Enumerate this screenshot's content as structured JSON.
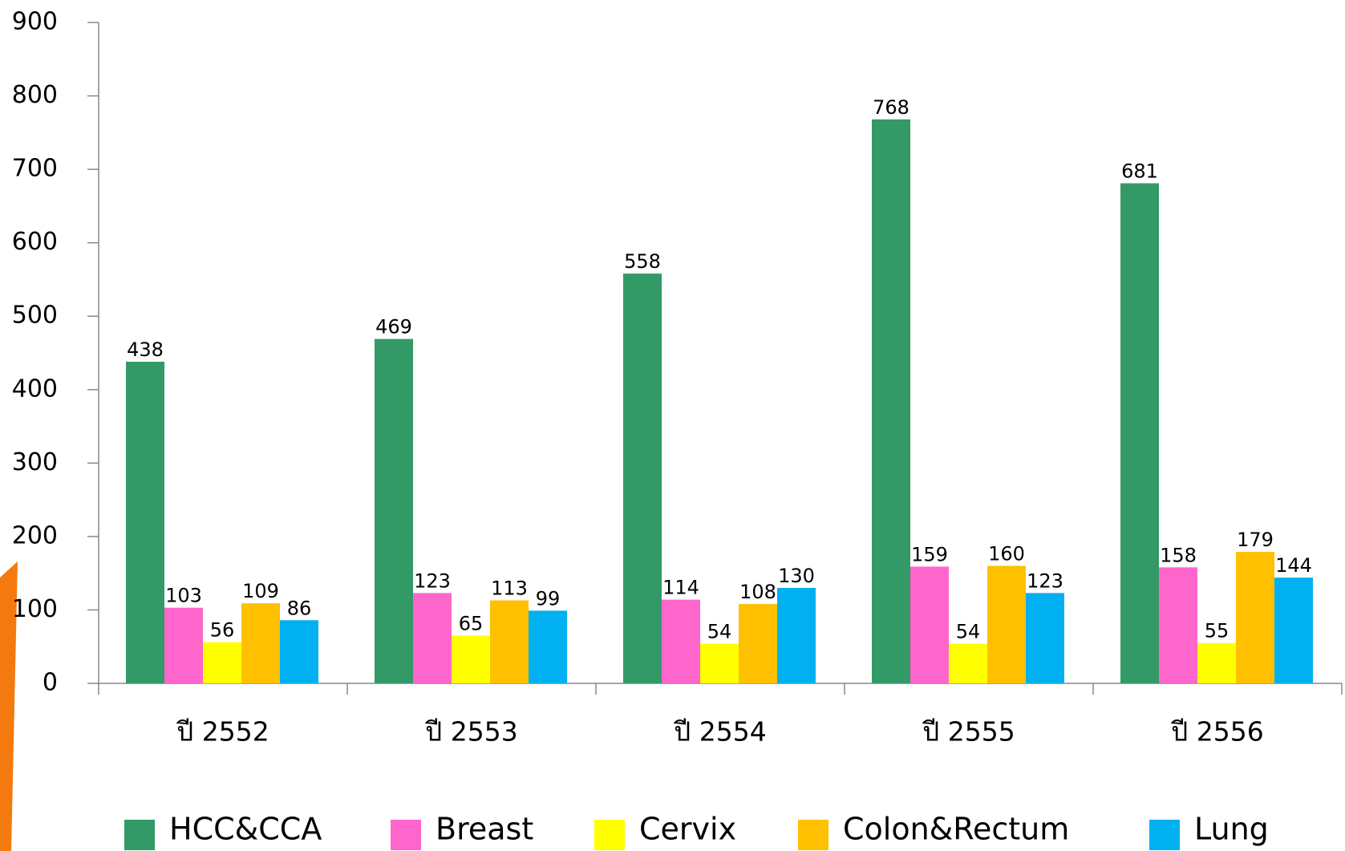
{
  "chart_data": {
    "type": "bar",
    "categories": [
      "ปี 2552",
      "ปี 2553",
      "ปี 2554",
      "ปี 2555",
      "ปี 2556"
    ],
    "series": [
      {
        "name": "HCC&CCA",
        "color": "#339966",
        "values": [
          438,
          469,
          558,
          768,
          681
        ]
      },
      {
        "name": "Breast",
        "color": "#ff66cc",
        "values": [
          103,
          123,
          114,
          159,
          158
        ]
      },
      {
        "name": "Cervix",
        "color": "#ffff00",
        "values": [
          56,
          65,
          54,
          54,
          55
        ]
      },
      {
        "name": "Colon&Rectum",
        "color": "#ffc000",
        "values": [
          109,
          113,
          108,
          160,
          179
        ]
      },
      {
        "name": "Lung",
        "color": "#00b0f0",
        "values": [
          86,
          99,
          130,
          123,
          144
        ]
      }
    ],
    "ylim": [
      0,
      900
    ],
    "yticks": [
      0,
      100,
      200,
      300,
      400,
      500,
      600,
      700,
      800,
      900
    ],
    "grid": false,
    "legend": "bottom"
  }
}
